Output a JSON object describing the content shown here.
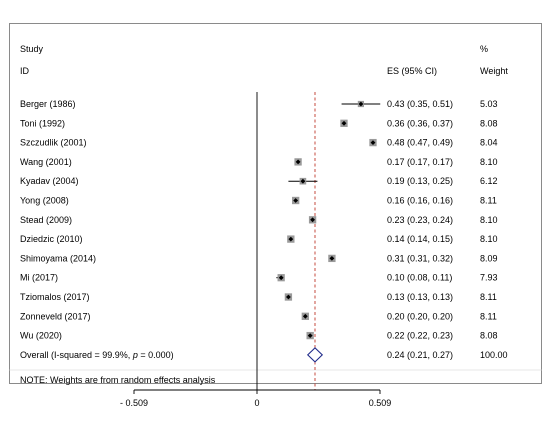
{
  "header": {
    "study_line1": "Study",
    "study_line2": "ID",
    "es_label": "ES (95% CI)",
    "weight_line1": "%",
    "weight_line2": "Weight"
  },
  "note": "NOTE: Weights are from random effects analysis",
  "chart_data": {
    "type": "forest",
    "xlim": [
      -0.509,
      0.509
    ],
    "x_ticks": [
      -0.509,
      0,
      0.509
    ],
    "x_tick_labels": [
      "- 0.509",
      "0",
      "0.509"
    ],
    "null_line": 0,
    "overall_line": 0.24,
    "studies": [
      {
        "label": "Berger (1986)",
        "es": 0.43,
        "lo": 0.35,
        "hi": 0.51,
        "es_text": "0.43 (0.35, 0.51)",
        "weight": "5.03"
      },
      {
        "label": "Toni (1992)",
        "es": 0.36,
        "lo": 0.36,
        "hi": 0.37,
        "es_text": "0.36 (0.36, 0.37)",
        "weight": "8.08"
      },
      {
        "label": "Szczudlik (2001)",
        "es": 0.48,
        "lo": 0.47,
        "hi": 0.49,
        "es_text": "0.48 (0.47, 0.49)",
        "weight": "8.04"
      },
      {
        "label": "Wang (2001)",
        "es": 0.17,
        "lo": 0.17,
        "hi": 0.17,
        "es_text": "0.17 (0.17, 0.17)",
        "weight": "8.10"
      },
      {
        "label": "Kyadav (2004)",
        "es": 0.19,
        "lo": 0.13,
        "hi": 0.25,
        "es_text": "0.19 (0.13, 0.25)",
        "weight": "6.12"
      },
      {
        "label": "Yong (2008)",
        "es": 0.16,
        "lo": 0.16,
        "hi": 0.16,
        "es_text": "0.16 (0.16, 0.16)",
        "weight": "8.11"
      },
      {
        "label": "Stead (2009)",
        "es": 0.23,
        "lo": 0.23,
        "hi": 0.24,
        "es_text": "0.23 (0.23, 0.24)",
        "weight": "8.10"
      },
      {
        "label": "Dziedzic (2010)",
        "es": 0.14,
        "lo": 0.14,
        "hi": 0.15,
        "es_text": "0.14 (0.14, 0.15)",
        "weight": "8.10"
      },
      {
        "label": "Shimoyama (2014)",
        "es": 0.31,
        "lo": 0.31,
        "hi": 0.32,
        "es_text": "0.31 (0.31, 0.32)",
        "weight": "8.09"
      },
      {
        "label": "Mi (2017)",
        "es": 0.1,
        "lo": 0.08,
        "hi": 0.11,
        "es_text": "0.10 (0.08, 0.11)",
        "weight": "7.93"
      },
      {
        "label": "Tziomalos (2017)",
        "es": 0.13,
        "lo": 0.13,
        "hi": 0.13,
        "es_text": "0.13 (0.13, 0.13)",
        "weight": "8.11"
      },
      {
        "label": "Zonneveld (2017)",
        "es": 0.2,
        "lo": 0.2,
        "hi": 0.2,
        "es_text": "0.20 (0.20, 0.20)",
        "weight": "8.11"
      },
      {
        "label": "Wu (2020)",
        "es": 0.22,
        "lo": 0.22,
        "hi": 0.23,
        "es_text": "0.22 (0.22, 0.23)",
        "weight": "8.08"
      }
    ],
    "overall": {
      "label_prefix": "Overall  (I-squared = 99.9%, ",
      "label_p": "p",
      "label_suffix": " = 0.000)",
      "es": 0.24,
      "lo": 0.21,
      "hi": 0.27,
      "es_text": "0.24 (0.21, 0.27)",
      "weight": "100.00"
    },
    "colors": {
      "point": "#000000",
      "overall_line": "#c0392b",
      "diamond": "#1f2a8a",
      "frame": "#8a8a8a"
    }
  }
}
